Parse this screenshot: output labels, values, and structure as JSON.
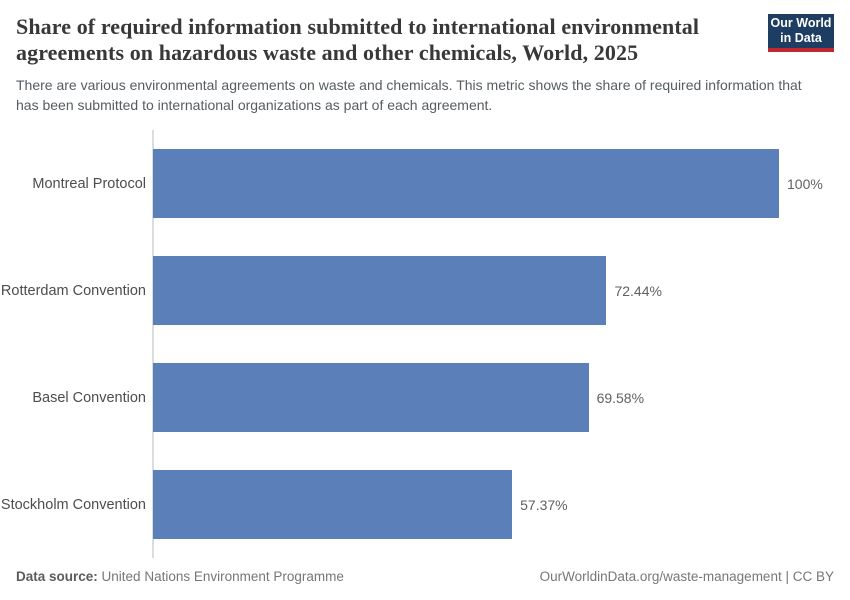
{
  "header": {
    "title": "Share of required information submitted to international environmental agreements on hazardous waste and other chemicals, World, 2025",
    "subtitle": "There are various environmental agreements on waste and chemicals. This metric shows the share of required information that has been submitted to international organizations as part of each agreement.",
    "logo": {
      "line1": "Our World",
      "line2": "in Data"
    }
  },
  "chart_data": {
    "type": "bar",
    "orientation": "horizontal",
    "title": "Share of required information submitted to international environmental agreements on hazardous waste and other chemicals, World, 2025",
    "categories": [
      "Montreal Protocol",
      "Rotterdam Convention",
      "Basel Convention",
      "Stockholm Convention"
    ],
    "values": [
      100,
      72.44,
      69.58,
      57.37
    ],
    "value_labels": [
      "100%",
      "72.44%",
      "69.58%",
      "57.37%"
    ],
    "unit": "%",
    "xlim": [
      0,
      100
    ],
    "grid": false,
    "legend": "none",
    "bar_color": "#5b80b9",
    "axis_line_color": "#dcdcdc"
  },
  "footer": {
    "datasource_label": "Data source:",
    "datasource_value": "United Nations Environment Programme",
    "link": "OurWorldinData.org/waste-management",
    "separator": " | ",
    "license": "CC BY"
  },
  "colors": {
    "bar": "#5b80b9",
    "title": "#383838",
    "subtitle": "#555d61",
    "logo_navy": "#1d3d63",
    "logo_red": "#c1272d"
  }
}
